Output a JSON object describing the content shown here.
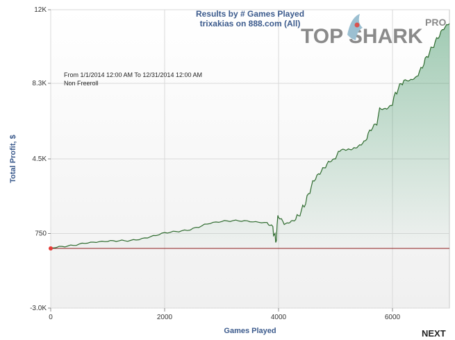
{
  "chart_data": {
    "type": "area",
    "title": "Results by # Games Played",
    "subtitle": "trixakias on 888.com (All)",
    "xlabel": "Games Played",
    "ylabel": "Total Profit, $",
    "xlim": [
      0,
      7000
    ],
    "ylim": [
      -3000,
      12000
    ],
    "x_ticks": [
      0,
      2000,
      4000,
      6000
    ],
    "y_ticks": [
      -3000,
      750,
      4500,
      8300,
      12000
    ],
    "y_tick_labels": [
      "-3.0K",
      "750",
      "4.5K",
      "8.3K",
      "12K"
    ],
    "grid": true,
    "baseline": 0,
    "start_marker": [
      0,
      0
    ],
    "annotations": [
      "From 1/1/2014 12:00 AM To 12/31/2014 12:00 AM",
      "Non Freeroll"
    ],
    "series": [
      {
        "name": "Total Profit",
        "color": "#2e6b2e",
        "x": [
          0,
          200,
          400,
          600,
          800,
          1000,
          1200,
          1400,
          1600,
          1800,
          2000,
          2200,
          2400,
          2600,
          2800,
          3000,
          3200,
          3400,
          3600,
          3800,
          3900,
          3950,
          4000,
          4100,
          4200,
          4300,
          4400,
          4500,
          4600,
          4700,
          4800,
          4900,
          5000,
          5100,
          5200,
          5300,
          5400,
          5500,
          5600,
          5700,
          5800,
          5900,
          6000,
          6100,
          6200,
          6300,
          6400,
          6500,
          6600,
          6700,
          6800,
          6900,
          7000
        ],
        "values": [
          50,
          100,
          150,
          250,
          300,
          350,
          380,
          400,
          500,
          650,
          800,
          850,
          900,
          1050,
          1250,
          1350,
          1400,
          1400,
          1350,
          1300,
          1100,
          300,
          1550,
          1200,
          1300,
          1450,
          1900,
          2650,
          3400,
          3750,
          4050,
          4350,
          4500,
          4950,
          4950,
          5000,
          5150,
          5400,
          5950,
          6250,
          7000,
          7000,
          7200,
          8000,
          8450,
          8450,
          8600,
          9100,
          9650,
          10100,
          10550,
          11000,
          11300
        ]
      }
    ],
    "colors": {
      "line": "#2e6b2e",
      "fill": "#2e8b57",
      "baseline": "#8b1a1a",
      "start_marker": "#e53935"
    }
  },
  "logo": {
    "main": "TOP SHARK",
    "tag": "PRO"
  },
  "nav": {
    "next_label": "NEXT"
  }
}
